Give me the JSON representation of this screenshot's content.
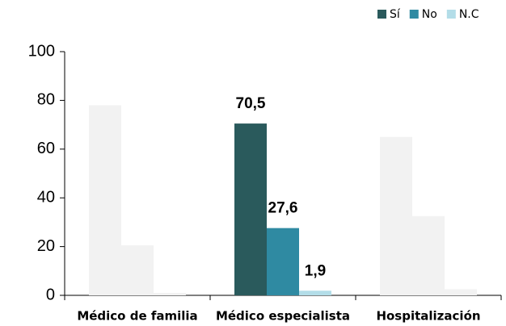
{
  "chart_data": {
    "type": "bar",
    "categories": [
      "Médico de familia",
      "Médico especialista",
      "Hospitalización"
    ],
    "series": [
      {
        "name": "Sí",
        "color": "#2a5a5c",
        "values": [
          78,
          70.5,
          65
        ],
        "value_labels": [
          null,
          "70,5",
          null
        ]
      },
      {
        "name": "No",
        "color": "#2f8aa2",
        "values": [
          20.5,
          27.6,
          32.5
        ],
        "value_labels": [
          null,
          "27,6",
          null
        ]
      },
      {
        "name": "N.C",
        "color": "#b3dde8",
        "values": [
          1,
          1.9,
          2.5
        ],
        "value_labels": [
          null,
          "1,9",
          null
        ]
      }
    ],
    "highlight_index": 1,
    "faded_color": "#f2f2f2",
    "ylim": [
      0,
      100
    ],
    "yticks": [
      0,
      20,
      40,
      60,
      80,
      100
    ],
    "legend": "top-right"
  }
}
